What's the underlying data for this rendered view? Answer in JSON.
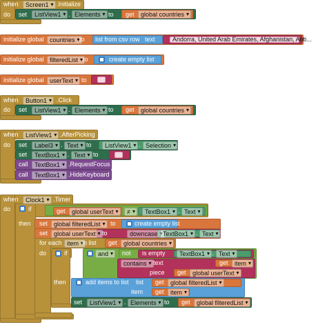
{
  "groups": [
    [
      "when",
      "Screen1",
      ".Initialize",
      "do",
      "set",
      "ListView1",
      ".",
      "Elements",
      "to",
      "get",
      "global countries"
    ],
    [
      "initialize global",
      "countries",
      "to",
      "list from csv row",
      "text",
      "Andorra, United Arab Emirates, Afghanistan, Anti..."
    ],
    [
      "initialize global",
      "filteredList",
      "to",
      "create empty list"
    ],
    [
      "initialize global",
      "userText",
      "to"
    ],
    [
      "when",
      "Button1",
      ".Click",
      "do",
      "set",
      "ListView1",
      ".",
      "Elements",
      "to",
      "get",
      "global countries"
    ],
    [
      "when",
      "ListView1",
      ".AfterPicking",
      "do",
      "set",
      "Label3",
      ".",
      "Text",
      "to",
      "ListView1",
      ".",
      "Selection",
      "set",
      "TextBox1",
      ".",
      "Text",
      "to",
      "call",
      "TextBox1",
      ".RequestFocus",
      "call",
      "TextBox1",
      ".HideKeyboard"
    ],
    [
      "when",
      "Clock1",
      ".Timer",
      "do",
      "if",
      "get",
      "global userText",
      "≠",
      "TextBox1",
      ".",
      "Text",
      "then",
      "set",
      "global filteredList",
      "to",
      "create empty list",
      "set",
      "global userText",
      "to",
      "downcase",
      "TextBox1",
      ".",
      "Text",
      "for each",
      "item",
      "in list",
      "get",
      "global countries",
      "do",
      "if",
      "and",
      "not",
      "is empty",
      "TextBox1",
      ".",
      "Text",
      "contains",
      "text",
      "get",
      "item",
      "piece",
      "get",
      "global userText",
      "then",
      "add items to list",
      "list",
      "get",
      "global filteredList",
      "item",
      "get",
      "item",
      "set",
      "ListView1",
      ".",
      "Elements",
      "to",
      "get",
      "global filteredList"
    ]
  ]
}
